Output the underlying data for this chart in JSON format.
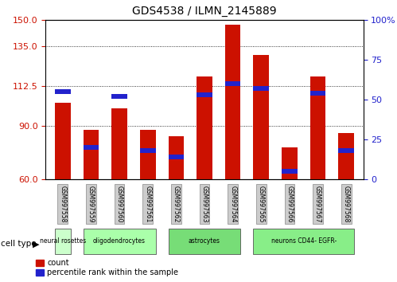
{
  "title": "GDS4538 / ILMN_2145889",
  "samples": [
    "GSM997558",
    "GSM997559",
    "GSM997560",
    "GSM997561",
    "GSM997562",
    "GSM997563",
    "GSM997564",
    "GSM997565",
    "GSM997566",
    "GSM997567",
    "GSM997568"
  ],
  "count_values": [
    103,
    88,
    100,
    88,
    84,
    118,
    147,
    130,
    78,
    118,
    86
  ],
  "percentile_values": [
    55,
    20,
    52,
    18,
    14,
    53,
    60,
    57,
    5,
    54,
    18
  ],
  "ylim_left": [
    60,
    150
  ],
  "ylim_right": [
    0,
    100
  ],
  "yticks_left": [
    60,
    90,
    112.5,
    135,
    150
  ],
  "yticks_right": [
    0,
    25,
    50,
    75,
    100
  ],
  "boundaries": [
    {
      "label": "neural rosettes",
      "start": 0,
      "end": 1,
      "color": "#ccffcc"
    },
    {
      "label": "oligodendrocytes",
      "start": 1,
      "end": 4,
      "color": "#aaffaa"
    },
    {
      "label": "astrocytes",
      "start": 4,
      "end": 7,
      "color": "#77dd77"
    },
    {
      "label": "neurons CD44- EGFR-",
      "start": 7,
      "end": 11,
      "color": "#88ee88"
    }
  ],
  "count_color": "#cc1100",
  "percentile_color": "#2222cc",
  "bar_width": 0.55,
  "grid_color": "#000000",
  "left_tick_color": "#cc1100",
  "right_tick_color": "#2222cc",
  "tick_bg_color": "#cccccc"
}
